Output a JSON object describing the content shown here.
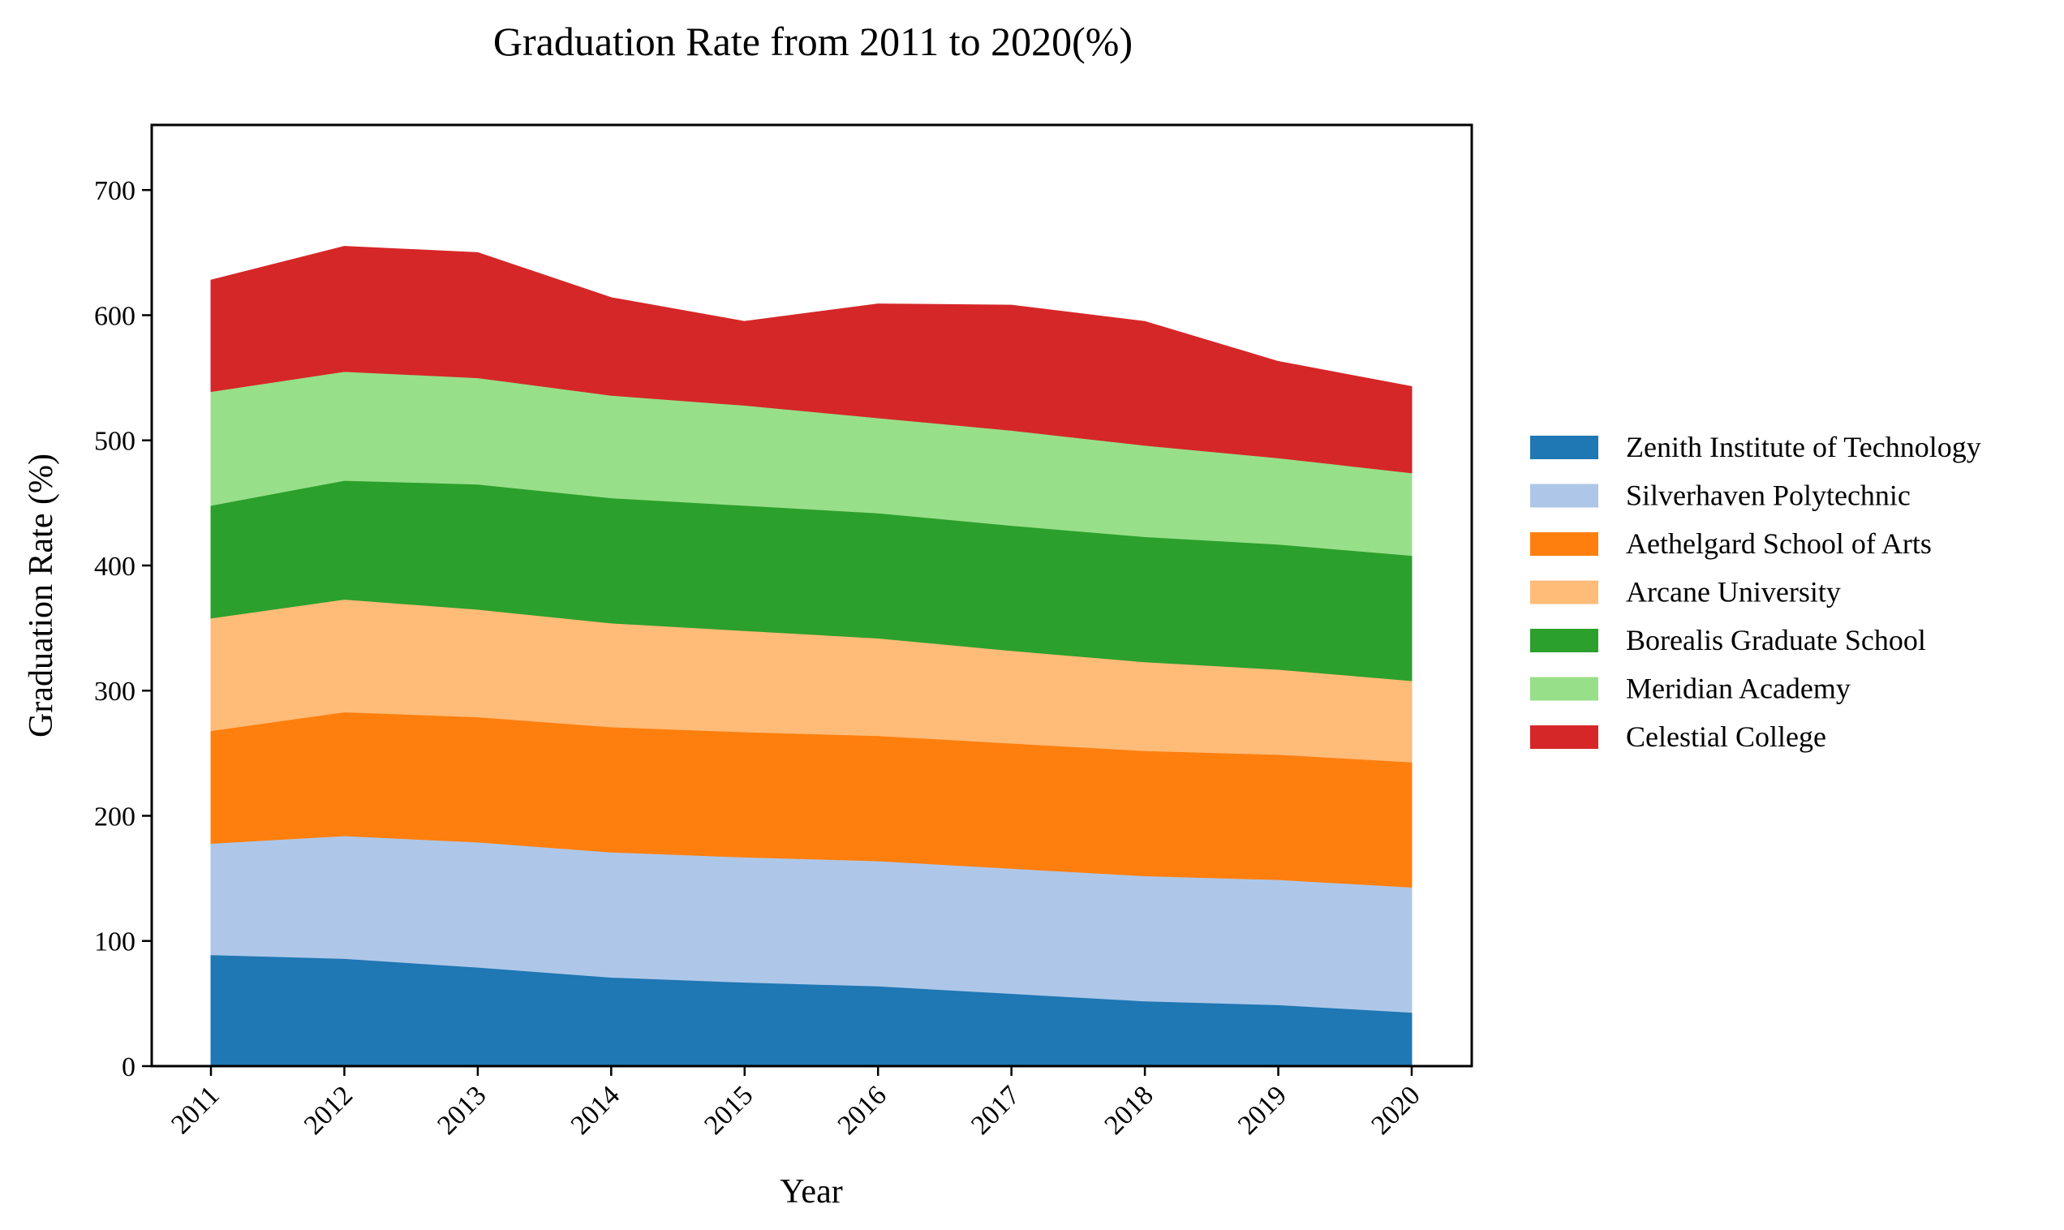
{
  "chart_data": {
    "type": "area",
    "stacked": true,
    "title": "Graduation Rate from 2011 to 2020(%)",
    "xlabel": "Year",
    "ylabel": "Graduation Rate (%)",
    "ylim": [
      0,
      752
    ],
    "yticks": [
      0,
      100,
      200,
      300,
      400,
      500,
      600,
      700
    ],
    "categories": [
      "2011",
      "2012",
      "2013",
      "2014",
      "2015",
      "2016",
      "2017",
      "2018",
      "2019",
      "2020"
    ],
    "legend_position": "right",
    "grid": false,
    "series": [
      {
        "name": "Zenith Institute of Technology",
        "color": "#1f77b4",
        "values": [
          89,
          86,
          79,
          71,
          67,
          64,
          58,
          52,
          49,
          43
        ]
      },
      {
        "name": "Silverhaven Polytechnic",
        "color": "#aec7e8",
        "values": [
          89,
          98,
          100,
          100,
          100,
          100,
          100,
          100,
          100,
          100
        ]
      },
      {
        "name": "Aethelgard School of Arts",
        "color": "#ff7f0e",
        "values": [
          90,
          99,
          100,
          100,
          100,
          100,
          100,
          100,
          100,
          100
        ]
      },
      {
        "name": "Arcane University",
        "color": "#ffbb78",
        "values": [
          90,
          90,
          86,
          83,
          81,
          78,
          74,
          71,
          68,
          65
        ]
      },
      {
        "name": "Borealis Graduate School",
        "color": "#2ca02c",
        "values": [
          90,
          95,
          100,
          100,
          100,
          100,
          100,
          100,
          100,
          100
        ]
      },
      {
        "name": "Meridian Academy",
        "color": "#98df8a",
        "values": [
          91,
          87,
          85,
          82,
          80,
          76,
          76,
          73,
          69,
          66
        ]
      },
      {
        "name": "Celestial College",
        "color": "#d62728",
        "values": [
          89,
          100,
          100,
          78,
          67,
          91,
          100,
          99,
          77,
          69
        ]
      }
    ]
  }
}
